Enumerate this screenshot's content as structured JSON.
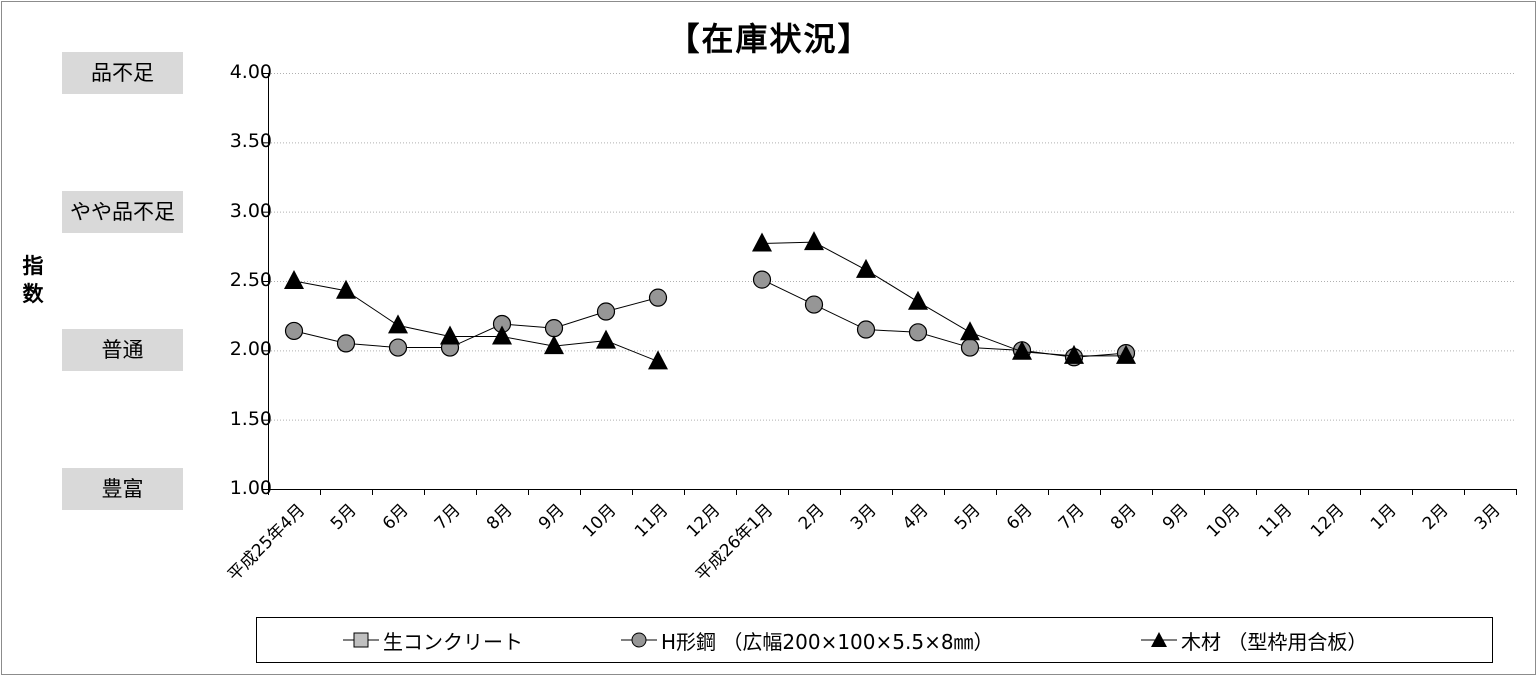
{
  "chart_data": {
    "type": "line",
    "title": "【在庫状況】",
    "ylabel": "指数",
    "ylim": [
      1.0,
      4.0
    ],
    "yticks": [
      "4.00",
      "3.50",
      "3.00",
      "2.50",
      "2.00",
      "1.50",
      "1.00"
    ],
    "level_labels": [
      {
        "label": "品不足",
        "value": 4.0
      },
      {
        "label": "やや品不足",
        "value": 3.0
      },
      {
        "label": "普通",
        "value": 2.0
      },
      {
        "label": "豊富",
        "value": 1.0
      }
    ],
    "categories": [
      "平成25年4月",
      "5月",
      "6月",
      "7月",
      "8月",
      "9月",
      "10月",
      "11月",
      "12月",
      "平成26年1月",
      "2月",
      "3月",
      "4月",
      "5月",
      "6月",
      "7月",
      "8月",
      "9月",
      "10月",
      "11月",
      "12月",
      "1月",
      "2月",
      "3月"
    ],
    "series": [
      {
        "name": "生コンクリート",
        "marker": "square",
        "color": "#c0c0c0",
        "values": [
          null,
          null,
          null,
          null,
          null,
          null,
          null,
          null,
          null,
          null,
          null,
          null,
          null,
          null,
          null,
          null,
          null,
          null,
          null,
          null,
          null,
          null,
          null,
          null
        ]
      },
      {
        "name": "H形鋼 （広幅200×100×5.5×8㎜）",
        "marker": "circle",
        "color": "#969696",
        "values": [
          2.14,
          2.05,
          2.02,
          2.02,
          2.19,
          2.16,
          2.28,
          2.38,
          null,
          2.51,
          2.33,
          2.15,
          2.13,
          2.02,
          2.0,
          1.95,
          1.98,
          null,
          null,
          null,
          null,
          null,
          null,
          null
        ]
      },
      {
        "name": "木材 （型枠用合板）",
        "marker": "triangle",
        "color": "#000000",
        "values": [
          2.5,
          2.43,
          2.18,
          2.1,
          2.1,
          2.03,
          2.07,
          1.92,
          null,
          2.77,
          2.78,
          2.58,
          2.35,
          2.13,
          1.99,
          1.96,
          1.96,
          null,
          null,
          null,
          null,
          null,
          null,
          null
        ]
      }
    ],
    "grid": true,
    "legend_position": "bottom"
  }
}
